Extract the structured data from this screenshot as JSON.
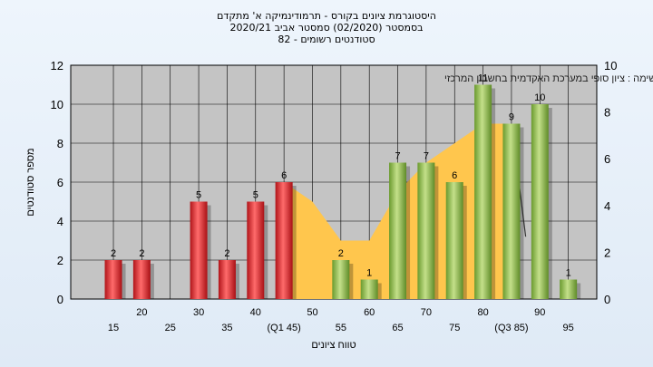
{
  "title_lines": [
    "היסטוגרמת ציונים בקורס - תרמודינמיקה א' מתקדם",
    "בסמסטר  (02/2020)  סמסטר אביב 2020/21",
    "סטודנטים רשומים - 82"
  ],
  "chart_data": {
    "type": "bar",
    "annotation": "במשימה : ציון סופי במערכת האקדמית בחשבון המרכזי",
    "xlabel": "טווח ציונים",
    "ylabel": "מספר סטודנטים",
    "ylim": [
      0,
      12
    ],
    "y_ticks": [
      0,
      2,
      4,
      6,
      8,
      10,
      12
    ],
    "y2lim": [
      0,
      10
    ],
    "y2_ticks": [
      0,
      2,
      4,
      6,
      8,
      10
    ],
    "grid": true,
    "x_tick_labels": [
      {
        "pos": 15,
        "label": "15"
      },
      {
        "pos": 20,
        "label": "20"
      },
      {
        "pos": 25,
        "label": "25"
      },
      {
        "pos": 30,
        "label": "30"
      },
      {
        "pos": 35,
        "label": "35"
      },
      {
        "pos": 40,
        "label": "40"
      },
      {
        "pos": 45,
        "label": "(Q1 45)"
      },
      {
        "pos": 50,
        "label": "50"
      },
      {
        "pos": 55,
        "label": "55"
      },
      {
        "pos": 60,
        "label": "60"
      },
      {
        "pos": 65,
        "label": "65"
      },
      {
        "pos": 70,
        "label": "70"
      },
      {
        "pos": 75,
        "label": "75"
      },
      {
        "pos": 80,
        "label": "80"
      },
      {
        "pos": 85,
        "label": "(Q3 85)"
      },
      {
        "pos": 90,
        "label": "90"
      },
      {
        "pos": 95,
        "label": "95"
      }
    ],
    "bars": [
      {
        "x": 15,
        "value": 2,
        "group": "fail"
      },
      {
        "x": 20,
        "value": 2,
        "group": "fail"
      },
      {
        "x": 30,
        "value": 5,
        "group": "fail"
      },
      {
        "x": 35,
        "value": 2,
        "group": "fail"
      },
      {
        "x": 40,
        "value": 5,
        "group": "fail"
      },
      {
        "x": 45,
        "value": 6,
        "group": "fail"
      },
      {
        "x": 55,
        "value": 2,
        "group": "pass"
      },
      {
        "x": 60,
        "value": 1,
        "group": "pass"
      },
      {
        "x": 65,
        "value": 7,
        "group": "pass"
      },
      {
        "x": 70,
        "value": 7,
        "group": "pass"
      },
      {
        "x": 75,
        "value": 6,
        "group": "pass"
      },
      {
        "x": 80,
        "value": 11,
        "group": "pass"
      },
      {
        "x": 85,
        "value": 9,
        "group": "pass"
      },
      {
        "x": 90,
        "value": 10,
        "group": "pass"
      },
      {
        "x": 95,
        "value": 1,
        "group": "pass"
      }
    ],
    "area": [
      {
        "x": 45,
        "y": 6
      },
      {
        "x": 50,
        "y": 5
      },
      {
        "x": 55,
        "y": 3
      },
      {
        "x": 60,
        "y": 3
      },
      {
        "x": 65,
        "y": 5.5
      },
      {
        "x": 70,
        "y": 7
      },
      {
        "x": 75,
        "y": 8
      },
      {
        "x": 80,
        "y": 9
      },
      {
        "x": 85,
        "y": 9
      }
    ],
    "colors": {
      "fail": "#e0262b",
      "pass": "#8ebc4a",
      "area": "#ffc64d",
      "plot_bg": "#c4c4c4"
    }
  }
}
